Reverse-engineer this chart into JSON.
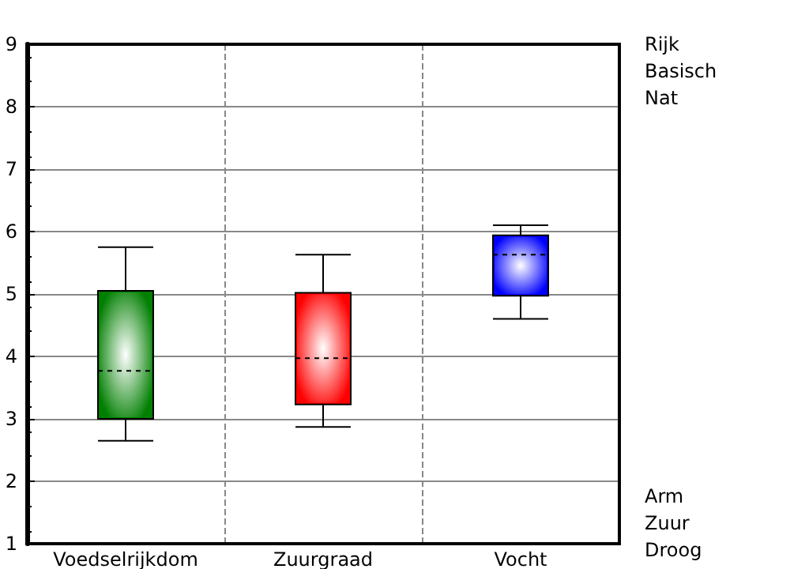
{
  "chart_data": {
    "type": "box",
    "categories": [
      "Voedselrijkdom",
      "Zuurgraad",
      "Vocht"
    ],
    "series": [
      {
        "colors": [
          "#007f00",
          "#ff0000",
          "#0000ff"
        ],
        "boxes": [
          {
            "low": 2.65,
            "q1": 3.0,
            "median": 3.77,
            "q3": 5.05,
            "high": 5.75
          },
          {
            "low": 2.87,
            "q1": 3.23,
            "median": 3.97,
            "q3": 5.02,
            "high": 5.63
          },
          {
            "low": 4.6,
            "q1": 4.97,
            "median": 5.63,
            "q3": 5.94,
            "high": 6.1
          }
        ]
      }
    ],
    "ylim": [
      1,
      9
    ],
    "yticks": [
      1,
      2,
      3,
      4,
      5,
      6,
      7,
      8,
      9
    ],
    "grid": true,
    "annotations": [
      "Rijk",
      "Basisch",
      "Nat",
      "Arm",
      "Zuur",
      "Droog"
    ]
  }
}
